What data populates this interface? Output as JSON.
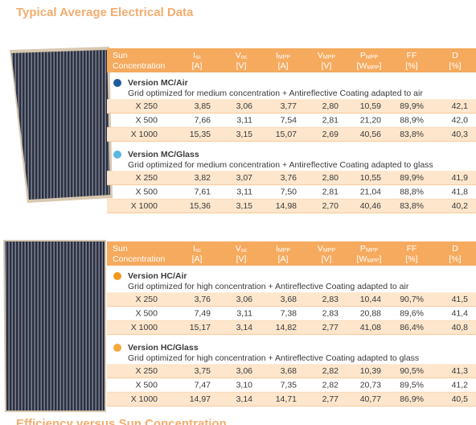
{
  "title": "Typical Average Electrical Data",
  "footer_title": "Efficiency versus Sun Concentration",
  "header": {
    "label": [
      "Sun",
      "Concentration"
    ],
    "columns": [
      {
        "symbol": "I",
        "sub": "sc",
        "unit": "[A]"
      },
      {
        "symbol": "V",
        "sub": "oc",
        "unit": "[V]"
      },
      {
        "symbol": "I",
        "sub": "MPP",
        "unit": "[A]"
      },
      {
        "symbol": "V",
        "sub": "MPP",
        "unit": "[V]"
      },
      {
        "symbol": "P",
        "sub": "MPP",
        "unit": "[W",
        "unit_sub": "MPP",
        "unit_end": "]"
      },
      {
        "symbol": "FF",
        "unit": "[%]"
      },
      {
        "symbol": "D",
        "unit": "[%]"
      }
    ]
  },
  "blocks": [
    {
      "versions": [
        {
          "name": "Version MC/Air",
          "dot": "#1d5c9c",
          "description": "Grid optimized for medium concentration + Antireflective Coating adapted to air",
          "rows": [
            [
              "X 250",
              "3,85",
              "3,06",
              "3,77",
              "2,80",
              "10,59",
              "89,9%",
              "42,1"
            ],
            [
              "X 500",
              "7,66",
              "3,11",
              "7,54",
              "2,81",
              "21,20",
              "88,9%",
              "42,0"
            ],
            [
              "X 1000",
              "15,35",
              "3,15",
              "15,07",
              "2,69",
              "40,56",
              "83,8%",
              "40,3"
            ]
          ]
        },
        {
          "name": "Version MC/Glass",
          "dot": "#5bb6e2",
          "description": "Grid optimized for medium concentration + Antireflective Coating adapted to glass",
          "rows": [
            [
              "X 250",
              "3,82",
              "3,07",
              "3,76",
              "2,80",
              "10,55",
              "89,9%",
              "41,9"
            ],
            [
              "X 500",
              "7,61",
              "3,11",
              "7,50",
              "2,81",
              "21,04",
              "88,8%",
              "41,8"
            ],
            [
              "X 1000",
              "15,36",
              "3,15",
              "14,98",
              "2,70",
              "40,46",
              "83,8%",
              "40,2"
            ]
          ]
        }
      ]
    },
    {
      "versions": [
        {
          "name": "Version HC/Air",
          "dot": "#f29a1c",
          "description": "Grid optimized for high concentration + Antireflective Coating adapted to air",
          "rows": [
            [
              "X 250",
              "3,76",
              "3,06",
              "3,68",
              "2,83",
              "10,44",
              "90,7%",
              "41,5"
            ],
            [
              "X 500",
              "7,49",
              "3,11",
              "7,38",
              "2,83",
              "20,88",
              "89,6%",
              "41,4"
            ],
            [
              "X 1000",
              "15,17",
              "3,14",
              "14,82",
              "2,77",
              "41,08",
              "86,4%",
              "40,8"
            ]
          ]
        },
        {
          "name": "Version HC/Glass",
          "dot": "#f2a93a",
          "description": "Grid optimized for high concentration + Antireflective Coating adapted to glass",
          "rows": [
            [
              "X 250",
              "3,75",
              "3,06",
              "3,68",
              "2,82",
              "10,39",
              "90,5%",
              "41,3"
            ],
            [
              "X 500",
              "7,47",
              "3,10",
              "7,35",
              "2,82",
              "20,73",
              "89,5%",
              "41,2"
            ],
            [
              "X 1000",
              "14,97",
              "3,14",
              "14,71",
              "2,77",
              "40,77",
              "86,9%",
              "40,5"
            ]
          ]
        }
      ]
    }
  ]
}
